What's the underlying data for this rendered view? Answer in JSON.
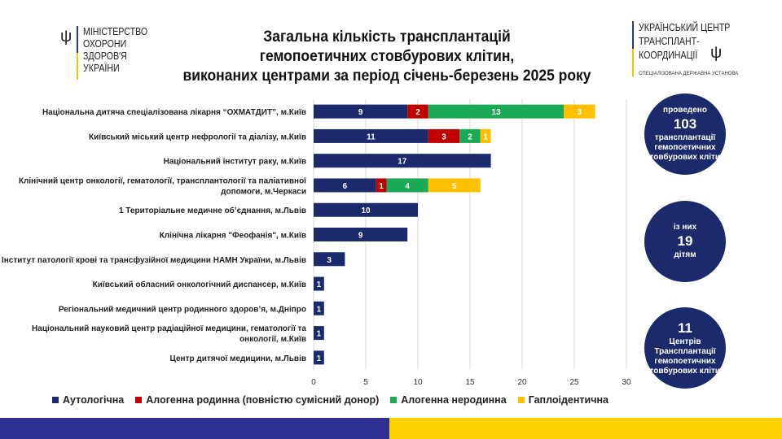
{
  "title": [
    "Загальна кількість трансплантацій",
    "гемопоетичних стовбурових клітин,",
    "виконаних центрами за період січень-березень 2025 року"
  ],
  "logo_left": [
    "МІНІСТЕРСТВО",
    "ОХОРОНИ",
    "ЗДОРОВ'Я",
    "УКРАЇНИ"
  ],
  "logo_right": {
    "lines": [
      "УКРАЇНСЬКИЙ ЦЕНТР",
      "ТРАНСПЛАНТ-",
      "КООРДИНАЦІЇ"
    ],
    "sub": "СПЕЦІАЛІЗОВАНА ДЕРЖАВНА УСТАНОВА"
  },
  "circles": [
    {
      "top": "проведено",
      "big": "103",
      "bottom": "трансплантації гемопоетичних стовбурових клітин"
    },
    {
      "top": "із них",
      "big": "19",
      "bottom": "дітям"
    },
    {
      "top": "",
      "big": "11",
      "bottom": "Центрів Трансплантації гемопоетичних стовбурових клітин"
    }
  ],
  "colors": {
    "Аутологічна": "#1b2a6b",
    "Алогенна родинна (повністю сумісний донор)": "#c00000",
    "Алогенна неродинна": "#1aaa55",
    "Гаплоідентична": "#ffc000"
  },
  "chart_data": {
    "type": "bar",
    "orientation": "horizontal-stacked",
    "title": "Загальна кількість трансплантацій гемопоетичних стовбурових клітин, виконаних центрами за період січень-березень 2025 року",
    "categories": [
      "Національна дитяча спеціалізована лікарня “ОХМАТДИТ”, м.Київ",
      "Київський міський центр нефрології та діалізу, м.Київ",
      "Національний інститут раку, м.Київ",
      "Клінічний центр онкології, гематології, трансплантології та паліативної допомоги, м.Черкаси",
      "1 Територіальне медичне об’єднання, м.Львів",
      "Клінічна лікарня \"Феофанія\", м.Київ",
      "Інститут патології крові та трансфузійної медицини НАМН України, м.Львів",
      "Київський обласний онкологічний диспансер, м.Київ",
      "Регіональний медичний центр родинного здоров’я, м.Дніпро",
      "Національний науковий центр радіаційної медицини, гематології та онкології, м.Київ",
      "Центр дитячої медицини, м.Львів"
    ],
    "series": [
      {
        "name": "Аутологічна",
        "values": [
          9,
          11,
          17,
          6,
          10,
          9,
          3,
          1,
          1,
          1,
          1
        ]
      },
      {
        "name": "Алогенна родинна (повністю сумісний донор)",
        "values": [
          2,
          3,
          0,
          1,
          0,
          0,
          0,
          0,
          0,
          0,
          0
        ]
      },
      {
        "name": "Алогенна неродинна",
        "values": [
          13,
          2,
          0,
          4,
          0,
          0,
          0,
          0,
          0,
          0,
          0
        ]
      },
      {
        "name": "Гаплоідентична",
        "values": [
          3,
          1,
          0,
          5,
          0,
          0,
          0,
          0,
          0,
          0,
          0
        ]
      }
    ],
    "xlim": [
      0,
      30
    ],
    "xticks": [
      "0",
      "5",
      "10",
      "15",
      "20",
      "25",
      "30"
    ],
    "grid": true,
    "legend": "bottom"
  }
}
